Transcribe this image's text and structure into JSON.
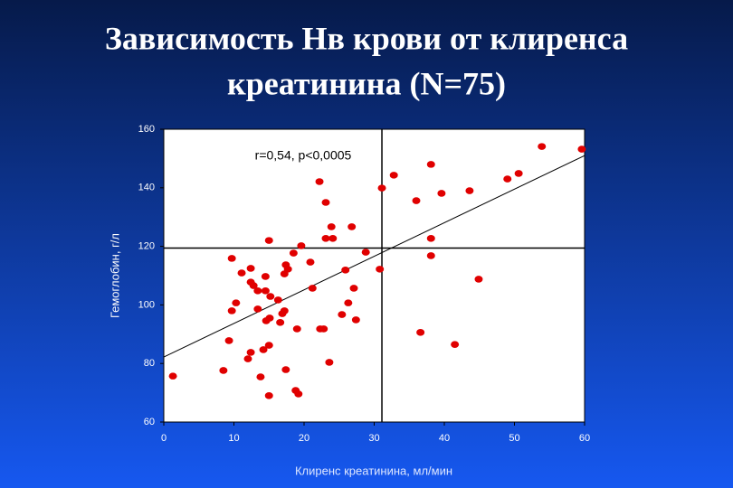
{
  "chart_data": {
    "type": "scatter",
    "title": [
      "Зависимость Нв крови от клиренса",
      "креатинина (N=75)"
    ],
    "annotation": "r=0,54, p<0,0005",
    "x_label": "Клиренс креатинина, мл/мин",
    "y_label": "Гемоглобин, г/л",
    "color": "#e00000",
    "x": [
      1.3,
      8.5,
      9.3,
      9.7,
      9.7,
      10.3,
      11.1,
      12.0,
      12.4,
      12.4,
      12.4,
      12.8,
      13.4,
      13.4,
      13.8,
      14.2,
      14.5,
      14.5,
      14.6,
      15.0,
      15.0,
      15.0,
      15.1,
      15.2,
      16.3,
      16.6,
      16.9,
      17.2,
      17.4,
      17.2,
      17.4,
      17.7,
      18.5,
      18.8,
      19.2,
      19.0,
      19.6,
      20.9,
      21.2,
      22.2,
      22.3,
      22.8,
      23.1,
      23.1,
      23.9,
      24.1,
      23.6,
      25.4,
      25.9,
      26.3,
      26.8,
      27.1,
      27.4,
      28.8,
      30.8,
      31.1,
      32.8,
      36.0,
      36.6,
      38.1,
      38.1,
      38.1,
      39.6,
      41.5,
      43.6,
      44.9,
      49.0,
      50.6,
      53.9,
      59.6
    ],
    "y": [
      75.7,
      77.6,
      87.8,
      115.9,
      98.0,
      100.7,
      110.9,
      81.6,
      83.8,
      112.5,
      107.8,
      106.6,
      98.6,
      104.8,
      75.4,
      84.7,
      109.7,
      104.8,
      94.6,
      86.2,
      69.0,
      122.0,
      95.5,
      102.9,
      101.7,
      94.0,
      97.0,
      98.0,
      77.9,
      110.6,
      113.7,
      112.2,
      117.7,
      70.8,
      69.6,
      91.8,
      120.2,
      114.6,
      105.7,
      142.1,
      91.8,
      91.8,
      135.0,
      122.7,
      126.7,
      122.7,
      80.4,
      96.7,
      111.9,
      100.7,
      126.7,
      105.7,
      94.9,
      118.0,
      112.2,
      139.9,
      144.3,
      135.6,
      90.6,
      148.0,
      122.7,
      116.8,
      138.1,
      86.5,
      139.0,
      108.8,
      143.0,
      144.9,
      154.1,
      153.2
    ],
    "trend_line": {
      "x": [
        0,
        60
      ],
      "y": [
        82.2,
        151.0
      ]
    },
    "reference_lines": {
      "x": 31.1,
      "y": 119.4
    },
    "xlim": [
      0,
      60
    ],
    "xticks": [
      0,
      10,
      20,
      30,
      40,
      50,
      60
    ],
    "ylim": [
      60,
      160
    ],
    "yticks": [
      60,
      80,
      100,
      120,
      140,
      160
    ]
  }
}
